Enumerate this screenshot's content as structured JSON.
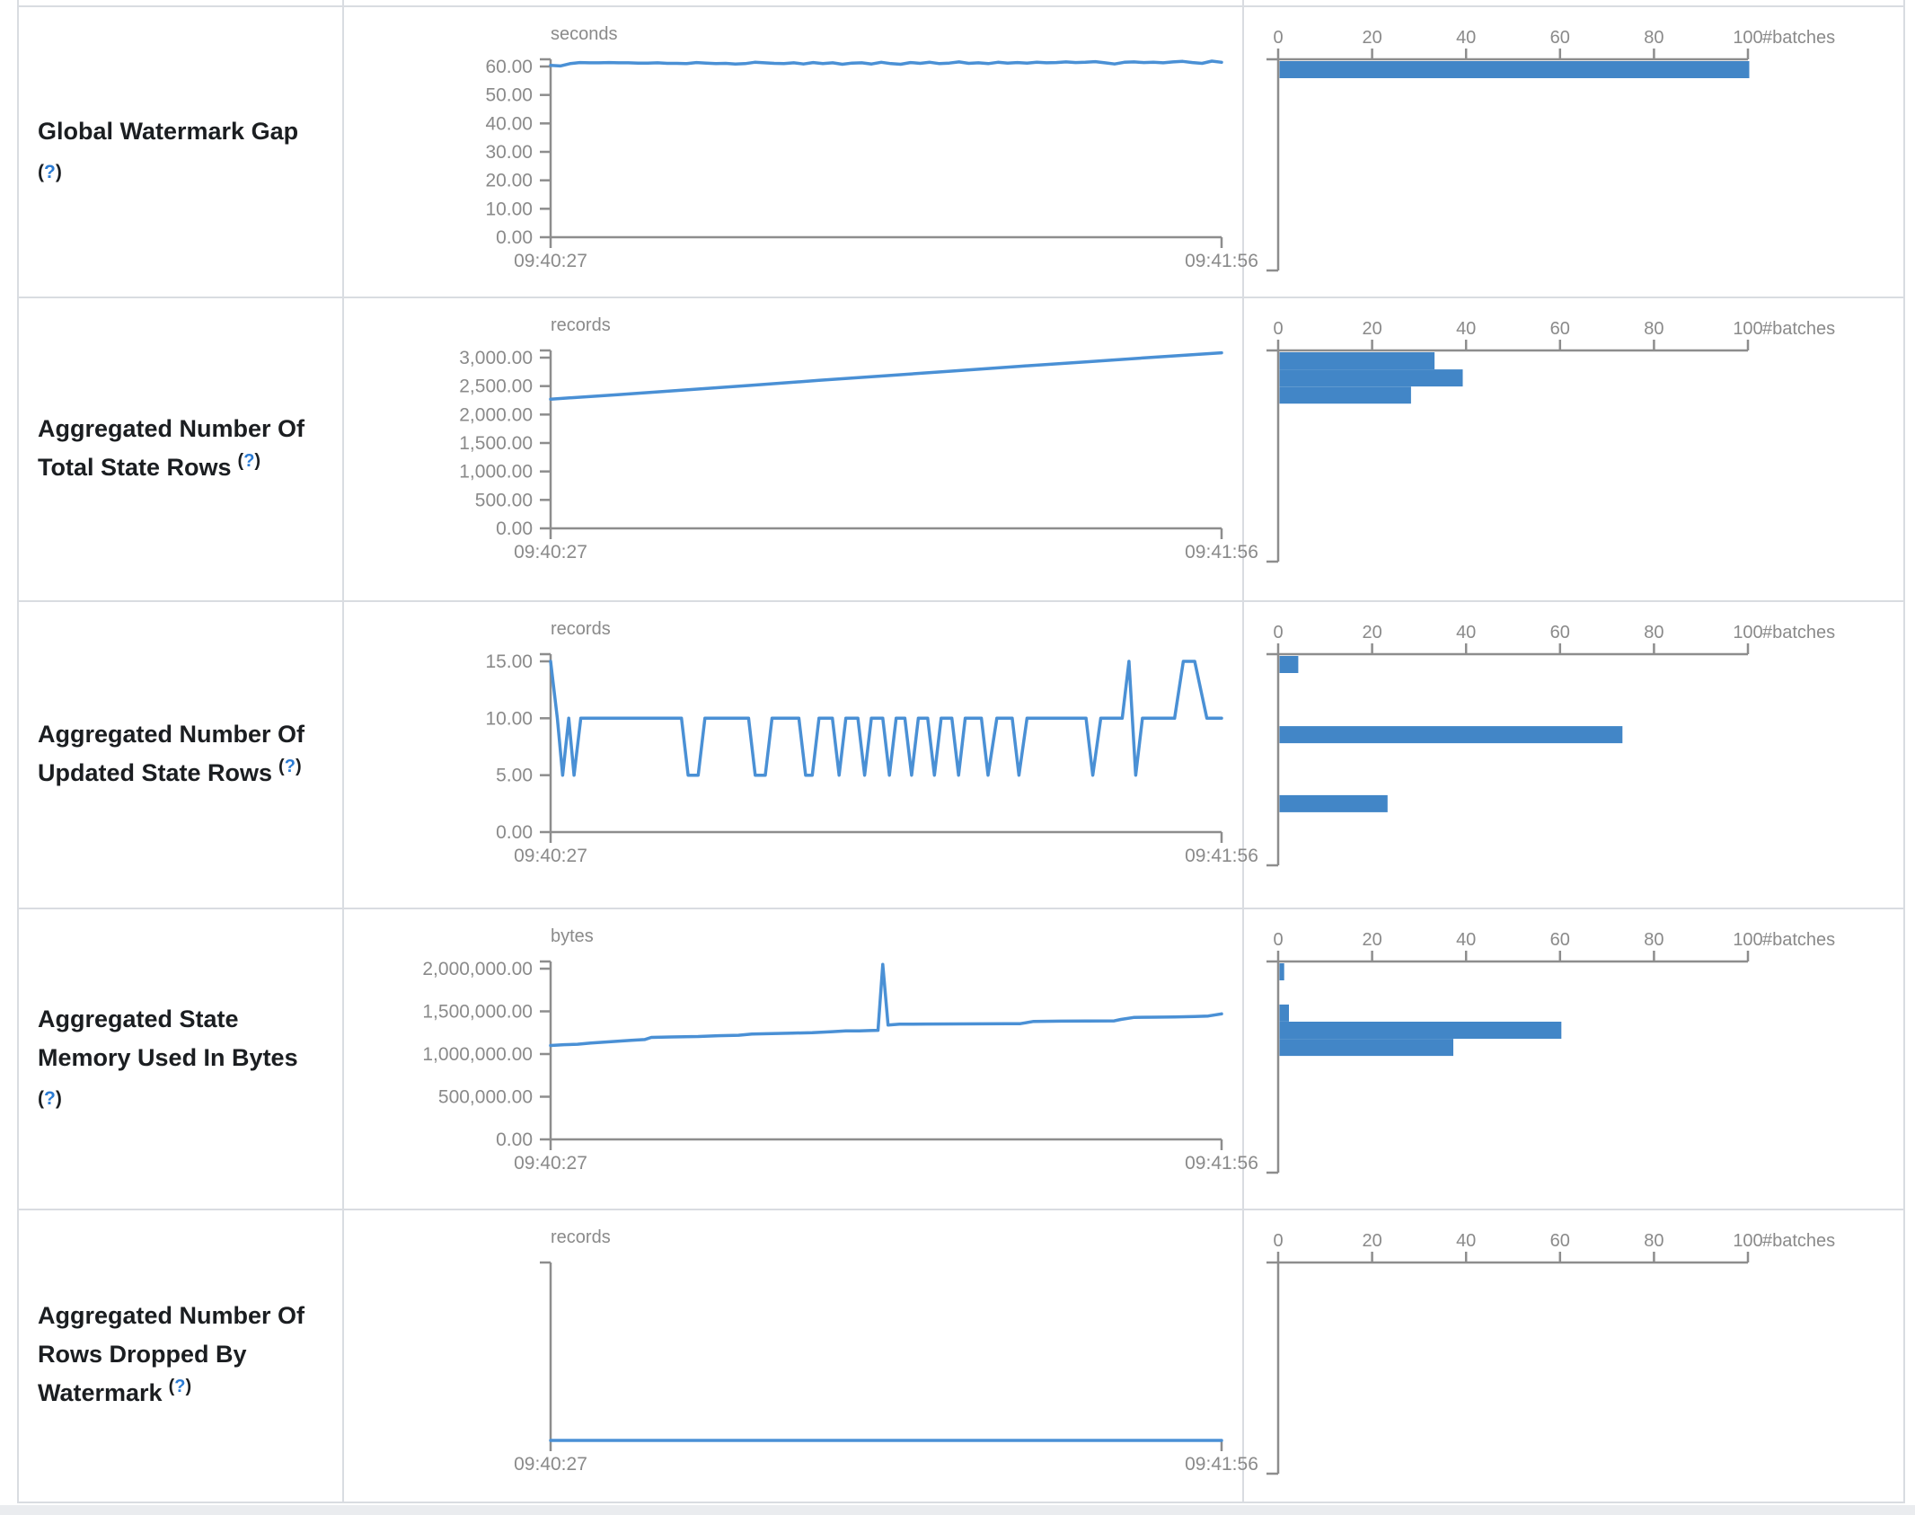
{
  "colors": {
    "bar": "#4286c7",
    "line": "#4a90d5",
    "axis_gray": "#8d8d8d",
    "border": "#d9dce1",
    "label_text": "#1b1e21",
    "help_blue": "#2b7bd3"
  },
  "time_axis": {
    "start_label": "09:40:27",
    "end_label": "09:41:56"
  },
  "batches_axis": {
    "tick_labels": [
      "0",
      "20",
      "40",
      "60",
      "80",
      "100"
    ],
    "tick_values": [
      0,
      20,
      40,
      60,
      80,
      100
    ],
    "max": 100,
    "unit_label": "#batches"
  },
  "rows": [
    {
      "id": "global-watermark-gap",
      "label_lines": [
        "Global Watermark Gap"
      ],
      "help_label": "(?)",
      "help_q": "?",
      "help_on_new_line": true,
      "unit": "seconds",
      "y_tick_labels": [
        "60.00",
        "50.00",
        "40.00",
        "30.00",
        "20.00",
        "10.00",
        "0.00"
      ],
      "y_tick_values": [
        60,
        50,
        40,
        30,
        20,
        10,
        0
      ],
      "y_max": 60,
      "line": {
        "values": [
          60.4,
          60.2,
          61.0,
          61.4,
          61.3,
          61.3,
          61.4,
          61.3,
          61.3,
          61.2,
          61.2,
          61.3,
          61.1,
          61.1,
          61.0,
          61.4,
          61.2,
          61.0,
          61.1,
          60.9,
          61.0,
          61.5,
          61.3,
          61.1,
          61.0,
          61.3,
          60.9,
          61.4,
          61.0,
          61.3,
          60.8,
          61.2,
          61.3,
          60.9,
          61.5,
          61.0,
          60.8,
          61.4,
          61.1,
          61.5,
          61.0,
          61.2,
          61.6,
          61.1,
          61.3,
          61.0,
          61.5,
          61.2,
          61.4,
          61.2,
          61.5,
          61.3,
          61.4,
          61.6,
          61.4,
          61.5,
          61.7,
          61.3,
          60.9,
          61.5,
          61.6,
          61.4,
          61.5,
          61.3,
          61.6,
          61.8,
          61.4,
          61.1,
          61.9,
          61.5
        ]
      },
      "histogram": {
        "bars": [
          {
            "pos": 0.0,
            "count": 100
          }
        ]
      }
    },
    {
      "id": "aggregated-total-state-rows",
      "label_lines": [
        "Aggregated Number Of",
        "Total State Rows"
      ],
      "help_label": "(?)",
      "help_q": "?",
      "help_on_new_line": false,
      "unit": "records",
      "y_tick_labels": [
        "3,000.00",
        "2,500.00",
        "2,000.00",
        "1,500.00",
        "1,000.00",
        "500.00",
        "0.00"
      ],
      "y_tick_values": [
        3000,
        2500,
        2000,
        1500,
        1000,
        500,
        0
      ],
      "y_max": 3000,
      "line": {
        "points": [
          [
            0,
            2270
          ],
          [
            0.1,
            2350
          ],
          [
            0.2,
            2432
          ],
          [
            0.3,
            2515
          ],
          [
            0.4,
            2600
          ],
          [
            0.5,
            2682
          ],
          [
            0.6,
            2765
          ],
          [
            0.7,
            2848
          ],
          [
            0.8,
            2928
          ],
          [
            0.9,
            3008
          ],
          [
            1,
            3085
          ]
        ]
      },
      "histogram": {
        "bars": [
          {
            "pos": 0.0,
            "count": 33
          },
          {
            "pos": 0.082,
            "count": 39
          },
          {
            "pos": 0.164,
            "count": 28
          }
        ]
      }
    },
    {
      "id": "aggregated-updated-state-rows",
      "label_lines": [
        "Aggregated Number Of",
        "Updated State Rows"
      ],
      "help_label": "(?)",
      "help_q": "?",
      "help_on_new_line": false,
      "unit": "records",
      "y_tick_labels": [
        "15.00",
        "10.00",
        "5.00",
        "0.00"
      ],
      "y_tick_values": [
        15,
        10,
        5,
        0
      ],
      "y_max": 15,
      "line": {
        "points": [
          [
            0,
            15
          ],
          [
            0.01,
            10
          ],
          [
            0.018,
            5
          ],
          [
            0.027,
            10
          ],
          [
            0.035,
            5
          ],
          [
            0.045,
            10
          ],
          [
            0.195,
            10
          ],
          [
            0.205,
            5
          ],
          [
            0.22,
            5
          ],
          [
            0.23,
            10
          ],
          [
            0.295,
            10
          ],
          [
            0.305,
            5
          ],
          [
            0.32,
            5
          ],
          [
            0.33,
            10
          ],
          [
            0.37,
            10
          ],
          [
            0.38,
            5
          ],
          [
            0.39,
            5
          ],
          [
            0.4,
            10
          ],
          [
            0.42,
            10
          ],
          [
            0.43,
            5
          ],
          [
            0.44,
            10
          ],
          [
            0.458,
            10
          ],
          [
            0.468,
            5
          ],
          [
            0.478,
            10
          ],
          [
            0.495,
            10
          ],
          [
            0.505,
            5
          ],
          [
            0.515,
            10
          ],
          [
            0.528,
            10
          ],
          [
            0.538,
            5
          ],
          [
            0.548,
            10
          ],
          [
            0.562,
            10
          ],
          [
            0.572,
            5
          ],
          [
            0.582,
            10
          ],
          [
            0.598,
            10
          ],
          [
            0.608,
            5
          ],
          [
            0.618,
            10
          ],
          [
            0.642,
            10
          ],
          [
            0.652,
            5
          ],
          [
            0.665,
            10
          ],
          [
            0.688,
            10
          ],
          [
            0.698,
            5
          ],
          [
            0.71,
            10
          ],
          [
            0.798,
            10
          ],
          [
            0.808,
            5
          ],
          [
            0.82,
            10
          ],
          [
            0.852,
            10
          ],
          [
            0.862,
            15
          ],
          [
            0.872,
            5
          ],
          [
            0.882,
            10
          ],
          [
            0.93,
            10
          ],
          [
            0.943,
            15
          ],
          [
            0.96,
            15
          ],
          [
            0.978,
            10
          ],
          [
            1,
            10
          ]
        ]
      },
      "histogram": {
        "bars": [
          {
            "pos": 0.0,
            "count": 4
          },
          {
            "pos": 0.335,
            "count": 73
          },
          {
            "pos": 0.665,
            "count": 23
          }
        ]
      }
    },
    {
      "id": "aggregated-state-memory-used",
      "label_lines": [
        "Aggregated State",
        "Memory Used In Bytes"
      ],
      "help_label": "(?)",
      "help_q": "?",
      "help_on_new_line": true,
      "unit": "bytes",
      "y_tick_labels": [
        "2,000,000.00",
        "1,500,000.00",
        "1,000,000.00",
        "500,000.00",
        "0.00"
      ],
      "y_tick_values": [
        2000000,
        1500000,
        1000000,
        500000,
        0
      ],
      "y_max": 2000000,
      "line": {
        "points": [
          [
            0,
            1100000
          ],
          [
            0.02,
            1110000
          ],
          [
            0.04,
            1115000
          ],
          [
            0.06,
            1130000
          ],
          [
            0.08,
            1140000
          ],
          [
            0.1,
            1150000
          ],
          [
            0.12,
            1160000
          ],
          [
            0.14,
            1170000
          ],
          [
            0.15,
            1195000
          ],
          [
            0.18,
            1200000
          ],
          [
            0.22,
            1205000
          ],
          [
            0.25,
            1215000
          ],
          [
            0.28,
            1220000
          ],
          [
            0.3,
            1235000
          ],
          [
            0.33,
            1240000
          ],
          [
            0.36,
            1245000
          ],
          [
            0.39,
            1250000
          ],
          [
            0.42,
            1262000
          ],
          [
            0.44,
            1270000
          ],
          [
            0.46,
            1272000
          ],
          [
            0.475,
            1275000
          ],
          [
            0.488,
            1278000
          ],
          [
            0.495,
            2050000
          ],
          [
            0.503,
            1340000
          ],
          [
            0.52,
            1350000
          ],
          [
            0.56,
            1352000
          ],
          [
            0.6,
            1353000
          ],
          [
            0.64,
            1354000
          ],
          [
            0.68,
            1355000
          ],
          [
            0.7,
            1356000
          ],
          [
            0.72,
            1382000
          ],
          [
            0.76,
            1385000
          ],
          [
            0.8,
            1386000
          ],
          [
            0.84,
            1388000
          ],
          [
            0.85,
            1405000
          ],
          [
            0.87,
            1430000
          ],
          [
            0.9,
            1432000
          ],
          [
            0.93,
            1435000
          ],
          [
            0.96,
            1440000
          ],
          [
            0.98,
            1445000
          ],
          [
            1,
            1470000
          ]
        ]
      },
      "histogram": {
        "bars": [
          {
            "pos": 0.0,
            "count": 1
          },
          {
            "pos": 0.197,
            "count": 2
          },
          {
            "pos": 0.279,
            "count": 60
          },
          {
            "pos": 0.361,
            "count": 37
          }
        ]
      }
    },
    {
      "id": "aggregated-rows-dropped-by-watermark",
      "label_lines": [
        "Aggregated Number Of",
        "Rows Dropped By",
        "Watermark"
      ],
      "help_label": "(?)",
      "help_q": "?",
      "help_on_new_line": false,
      "unit": "records",
      "y_tick_labels": [],
      "y_tick_values": [],
      "y_max": 1,
      "line": {
        "points": [
          [
            0,
            0
          ],
          [
            1,
            0
          ]
        ]
      },
      "histogram": {
        "bars": []
      }
    }
  ]
}
